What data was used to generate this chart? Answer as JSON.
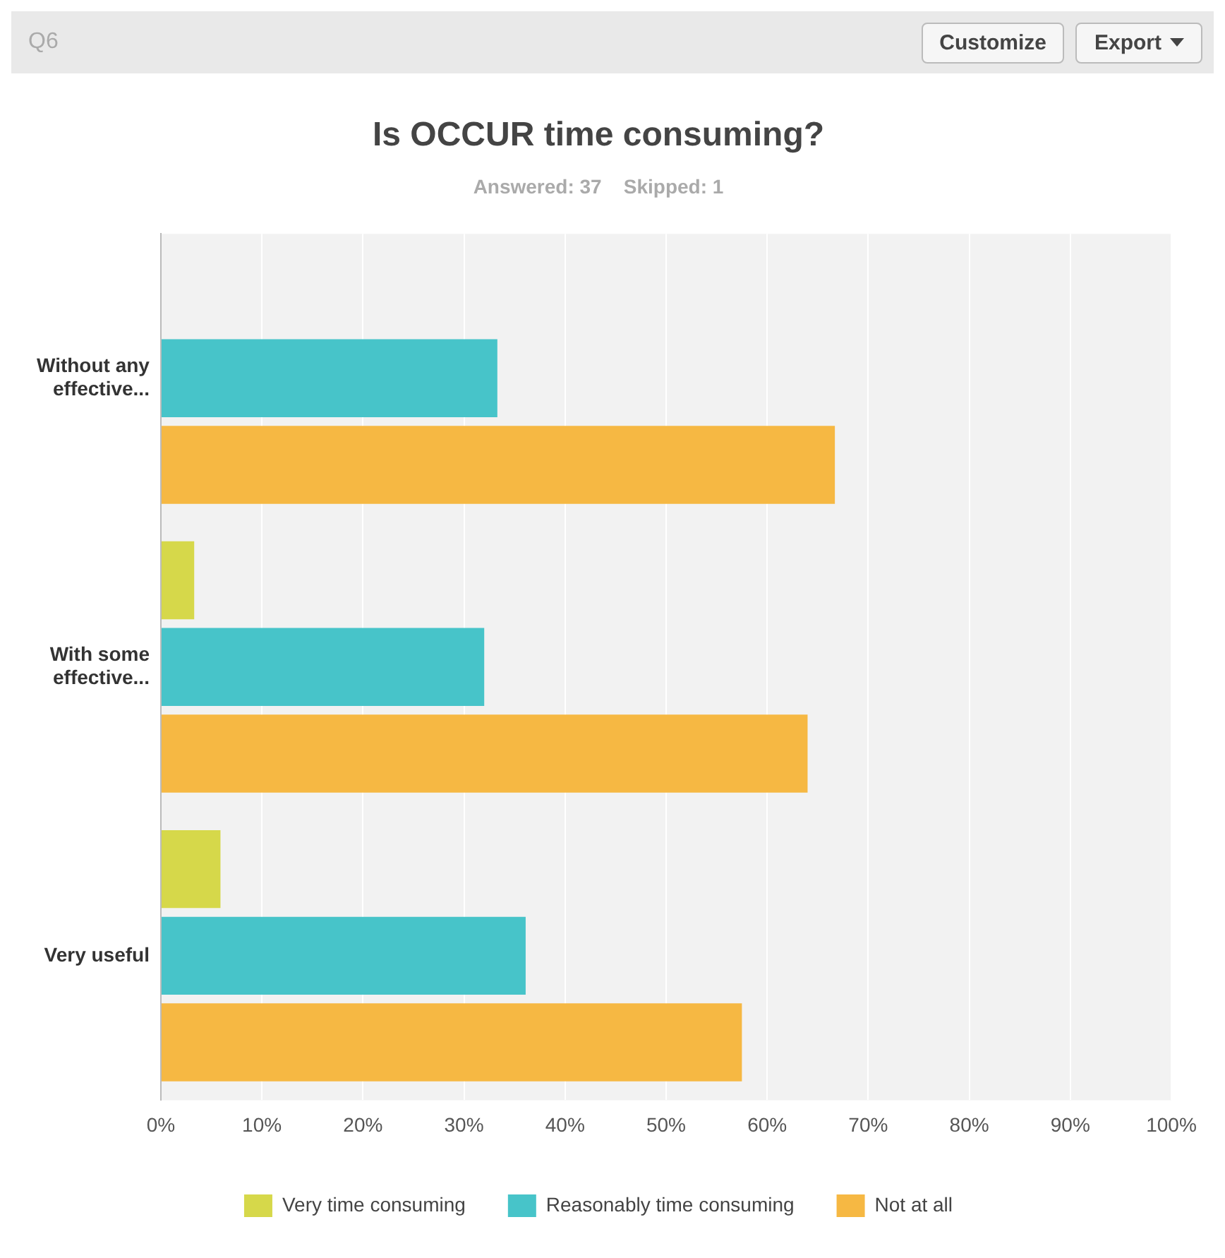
{
  "chart_data": {
    "type": "bar",
    "orientation": "horizontal",
    "title": "Is OCCUR time consuming?",
    "subtitle": "Answered: 37    Skipped: 1",
    "categories": [
      "Without any effective...",
      "With some effective...",
      "Very useful"
    ],
    "series": [
      {
        "name": "Very time consuming",
        "color": "#d6d84a",
        "values": [
          0,
          3.3,
          5.9
        ]
      },
      {
        "name": "Reasonably time consuming",
        "color": "#47c4c9",
        "values": [
          33.3,
          32,
          36.1
        ]
      },
      {
        "name": "Not at all",
        "color": "#f6b843",
        "values": [
          66.7,
          64,
          57.5
        ]
      }
    ],
    "xlim": [
      0,
      100
    ],
    "xticks": [
      {
        "value": 0,
        "label": "0%"
      },
      {
        "value": 10,
        "label": "10%"
      },
      {
        "value": 20,
        "label": "20%"
      },
      {
        "value": 30,
        "label": "30%"
      },
      {
        "value": 40,
        "label": "40%"
      },
      {
        "value": 50,
        "label": "50%"
      },
      {
        "value": 60,
        "label": "60%"
      },
      {
        "value": 70,
        "label": "70%"
      },
      {
        "value": 80,
        "label": "80%"
      },
      {
        "value": 90,
        "label": "90%"
      },
      {
        "value": 100,
        "label": "100%"
      }
    ],
    "grid": "x",
    "legend": "bottom",
    "annotations": [
      "Q6",
      "Customize",
      "Export"
    ]
  }
}
